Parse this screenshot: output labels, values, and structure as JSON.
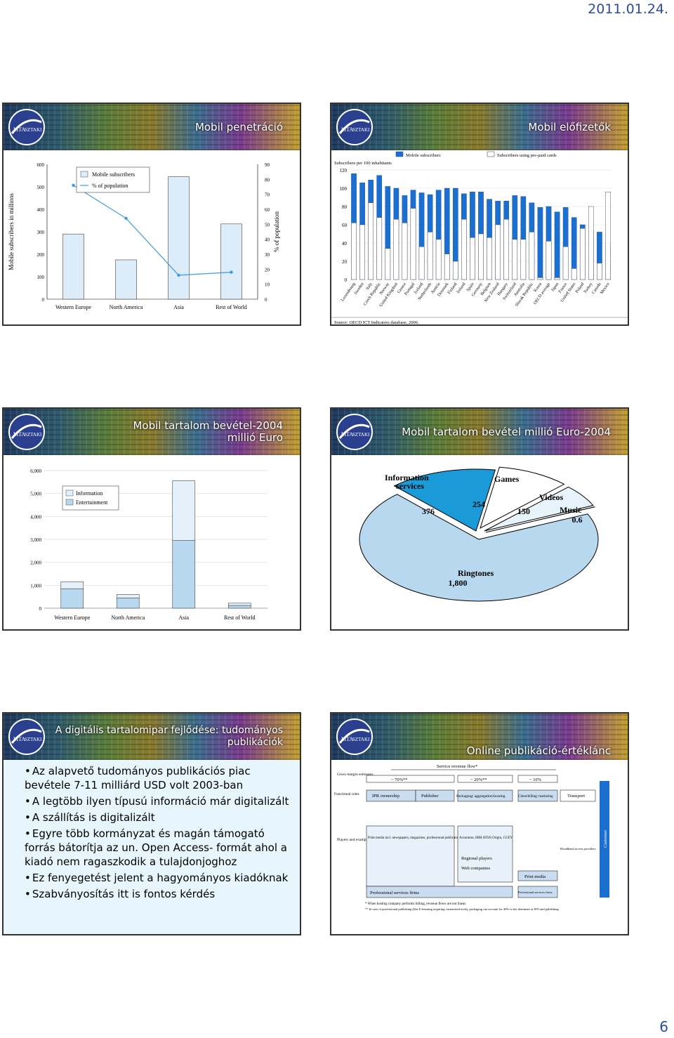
{
  "page": {
    "date": "2011.01.24.",
    "number": "6"
  },
  "logo": {
    "text1": "MTA",
    "text2": "SZTAKI"
  },
  "slides": [
    {
      "title": "Mobil penetráció"
    },
    {
      "title": "Mobil előfizetők"
    },
    {
      "title_line1": "Mobil tartalom bevétel-2004",
      "title_line2": "millió Euro"
    },
    {
      "title": "Mobil tartalom bevétel millió Euro-2004"
    },
    {
      "title_line1": "A digitális tartalomipar fejlődése: tudományos",
      "title_line2": "publikációk",
      "bullets": [
        "Az alapvető tudományos publikációs piac bevétele 7-11 milliárd USD volt 2003-ban",
        "A legtöbb ilyen típusú információ már digitalizált",
        "A szállítás is digitalizált",
        "Egyre több kormányzat és magán támogató forrás bátorítja az un. Open Access- formát ahol a kiadó nem ragaszkodik a tulajdonjoghoz",
        "Ez fenyegetést jelent a hagyományos kiadóknak",
        "Szabványosítás itt is fontos kérdés"
      ]
    },
    {
      "title": "Online publikáció-értéklánc",
      "diagram": {
        "header": "Service revenue flow*",
        "row_labels": [
          "Gross margin estimates",
          "Functional roles",
          "Players and examples"
        ],
        "margins": [
          "~ 70%**",
          "~ 20%**",
          "~ 10%"
        ],
        "roles": [
          "IPR ownership",
          "Publisher",
          "Packaging/ aggregation/hosting",
          "Client/billing/ marketing",
          "Transport"
        ],
        "players": [
          "Print media incl. newspapers, magazines, professional publications",
          "Accenture, IBM ATOS Origin, CGEY",
          "Regional players",
          "Web companies",
          "Print media",
          "Professional services firms",
          "Professional services firms",
          "Broadband access providers"
        ],
        "customer": "Customer",
        "footnotes": [
          "* When hosting company performs billing, revenue flows are not linear.",
          "** In case of professional publishing (like E-learning requiring customised tools), packaging can account for 40% to the detriment of IPO and publishing"
        ]
      }
    }
  ],
  "chart_data": [
    {
      "type": "bar",
      "categories": [
        "Western Europe",
        "North America",
        "Asia",
        "Rest of World"
      ],
      "series": [
        {
          "name": "Mobile subscribers",
          "values": [
            290,
            175,
            545,
            335
          ]
        },
        {
          "name": "% of population",
          "values": [
            76,
            54,
            16,
            18
          ]
        }
      ],
      "ylabel": "Mobile subscribers in millions",
      "y2label": "% of population",
      "ylim": [
        0,
        600
      ],
      "y2lim": [
        0,
        90
      ],
      "yticks": [
        0,
        100,
        200,
        300,
        400,
        500,
        600
      ],
      "y2ticks": [
        0,
        10,
        20,
        30,
        40,
        50,
        60,
        70,
        80,
        90
      ]
    },
    {
      "type": "bar",
      "legend": [
        "Mobile subscribers",
        "Subscribers using pre-paid cards"
      ],
      "ylabel": "Subscribers per 100 inhabitants",
      "ylim": [
        0,
        120
      ],
      "yticks": [
        0,
        20,
        40,
        60,
        80,
        100,
        120
      ],
      "categories": [
        "Luxembourg",
        "Sweden",
        "Italy",
        "Czech Republic",
        "Norway",
        "United Kingdom",
        "Greece",
        "Portugal",
        "Iceland",
        "Netherlands",
        "Austria",
        "Denmark",
        "Finland",
        "Ireland",
        "Spain",
        "Germany",
        "Belgium",
        "New Zealand",
        "Hungary",
        "Switzerland",
        "Australia",
        "Slovak Republic",
        "Korea",
        "OECD average",
        "Japan",
        "France",
        "United States",
        "Poland",
        "Turkey",
        "Canada",
        "Mexico"
      ],
      "series": [
        {
          "name": "Mobile subscribers",
          "values": [
            116,
            106,
            109,
            114,
            102,
            100,
            92,
            98,
            95,
            93,
            98,
            100,
            100,
            94,
            96,
            96,
            88,
            86,
            86,
            92,
            91,
            84,
            79,
            80,
            74,
            79,
            68,
            60,
            54,
            52,
            40
          ]
        },
        {
          "name": "Subscribers using pre-paid cards",
          "values": [
            62,
            60,
            84,
            68,
            34,
            66,
            62,
            78,
            36,
            52,
            44,
            28,
            20,
            66,
            46,
            50,
            46,
            60,
            66,
            44,
            44,
            52,
            2,
            42,
            2,
            36,
            12,
            56,
            80,
            18,
            96
          ]
        },
        "source_note_unused"
      ],
      "source": "Source: OECD ICT Indicators database, 2006."
    },
    {
      "type": "bar",
      "categories": [
        "Western Europe",
        "North America",
        "Asia",
        "Rest of World"
      ],
      "series": [
        {
          "name": "Information",
          "values": [
            850,
            450,
            2950,
            120
          ]
        },
        {
          "name": "Entertainment",
          "values": [
            300,
            150,
            2600,
            100
          ]
        }
      ],
      "ylim": [
        0,
        6000
      ],
      "yticks": [
        "0",
        "1,000",
        "2,000",
        "3,000",
        "4,000",
        "5,000",
        "6,000"
      ]
    },
    {
      "type": "pie",
      "slices": [
        {
          "label": "Ringtones",
          "value": 1800,
          "value_label": "1,800"
        },
        {
          "label": "Information services",
          "value": 376,
          "value_label": "376"
        },
        {
          "label": "Games",
          "value": 254,
          "value_label": "254"
        },
        {
          "label": "Videos",
          "value": 150,
          "value_label": "150"
        },
        {
          "label": "Music",
          "value": 0.6,
          "value_label": "0.6"
        }
      ]
    }
  ]
}
